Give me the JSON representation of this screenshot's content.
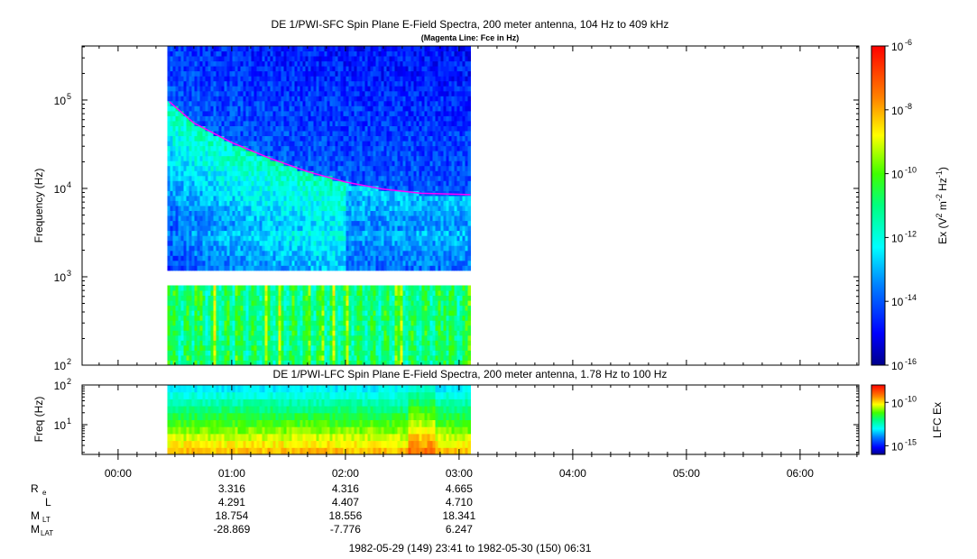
{
  "panels": [
    {
      "id": "sfc",
      "title": "DE 1/PWI-SFC  Spin Plane E-Field Spectra, 200 meter antenna, 104 Hz to 409 kHz",
      "subtitle": "(Magenta Line: Fce in Hz)",
      "ylabel": "Frequency (Hz)",
      "yscale": "log",
      "ylim": [
        100,
        409000
      ],
      "ytick_labels": [
        "10",
        "10",
        "10",
        "10"
      ],
      "ytick_exponents": [
        "2",
        "3",
        "4",
        "5"
      ],
      "data_window": [
        "00:26",
        "03:06"
      ],
      "gap_hz": [
        900,
        1040
      ],
      "fce_line": {
        "color": "#ff00ff",
        "x": [
          "00:27",
          "00:40",
          "01:00",
          "01:20",
          "01:40",
          "02:00",
          "02:20",
          "02:40",
          "03:06"
        ],
        "y": [
          96000,
          55000,
          33000,
          22000,
          15500,
          11800,
          9800,
          8800,
          8500
        ]
      },
      "colorbar": {
        "label_text": "Ex (V",
        "label_sup1": "2",
        "label_mid": " m",
        "label_sup2": "-2",
        "label_mid2": " Hz",
        "label_sup3": "-1",
        "label_end": ")",
        "scale": "log",
        "range": [
          1e-16,
          1e-06
        ],
        "tick_labels": [
          "10",
          "10",
          "10",
          "10",
          "10",
          "10"
        ],
        "tick_exponents": [
          "-6",
          "-8",
          "-10",
          "-12",
          "-14",
          "-16"
        ]
      }
    },
    {
      "id": "lfc",
      "title": "DE 1/PWI-LFC  Spin Plane E-Field Spectra, 200 meter antenna, 1.78 Hz to 100 Hz",
      "ylabel": "Freq (Hz)",
      "yscale": "log",
      "ylim": [
        1.78,
        100
      ],
      "ytick_labels": [
        "10",
        "10"
      ],
      "ytick_exponents": [
        "1",
        "2"
      ],
      "data_window": [
        "00:26",
        "03:06"
      ],
      "colorbar": {
        "label": "LFC Ex",
        "scale": "log",
        "range": [
          1e-16,
          1e-08
        ],
        "tick_labels": [
          "10",
          "10"
        ],
        "tick_exponents": [
          "-10",
          "-15"
        ]
      }
    }
  ],
  "time_axis": {
    "range": [
      "23:41",
      "06:31"
    ],
    "tick_labels": [
      "00:00",
      "01:00",
      "02:00",
      "03:00",
      "04:00",
      "05:00",
      "06:00"
    ]
  },
  "ephemeris": {
    "rows": [
      {
        "label": "R",
        "sub": "e",
        "values": [
          "3.316",
          "4.316",
          "4.665"
        ]
      },
      {
        "label": "L",
        "sub": "",
        "values": [
          "4.291",
          "4.407",
          "4.710"
        ]
      },
      {
        "label": "M",
        "sub": "LT",
        "values": [
          "18.754",
          "18.556",
          "18.341"
        ]
      },
      {
        "label": "M",
        "sub": "LAT",
        "values": [
          "-28.869",
          "-7.776",
          "6.247"
        ]
      }
    ],
    "at_ticks": [
      "01:00",
      "02:00",
      "03:00"
    ]
  },
  "footer": "1982-05-29 (149) 23:41 to 1982-05-30 (150) 06:31",
  "chart_data": [
    {
      "type": "heatmap",
      "title": "DE 1/PWI-SFC  Spin Plane E-Field Spectra, 200 meter antenna, 104 Hz to 409 kHz",
      "subtitle": "(Magenta Line: Fce in Hz)",
      "xlabel": "",
      "ylabel": "Frequency (Hz)",
      "xlim": [
        "23:41",
        "06:31"
      ],
      "ylim": [
        100,
        409000
      ],
      "yscale": "log",
      "colorscale": "log",
      "zlim": [
        1e-16,
        1e-06
      ],
      "series": [
        {
          "name": "Fce",
          "x": [
            "00:27",
            "00:40",
            "01:00",
            "01:20",
            "01:40",
            "02:00",
            "02:20",
            "02:40",
            "03:06"
          ],
          "y": [
            96000,
            55000,
            33000,
            22000,
            15500,
            11800,
            9800,
            8800,
            8500
          ]
        }
      ]
    },
    {
      "type": "heatmap",
      "title": "DE 1/PWI-LFC  Spin Plane E-Field Spectra, 200 meter antenna, 1.78 Hz to 100 Hz",
      "xlabel": "",
      "ylabel": "Freq (Hz)",
      "xlim": [
        "23:41",
        "06:31"
      ],
      "ylim": [
        1.78,
        100
      ],
      "yscale": "log",
      "colorscale": "log",
      "zlim": [
        1e-16,
        1e-08
      ]
    }
  ]
}
